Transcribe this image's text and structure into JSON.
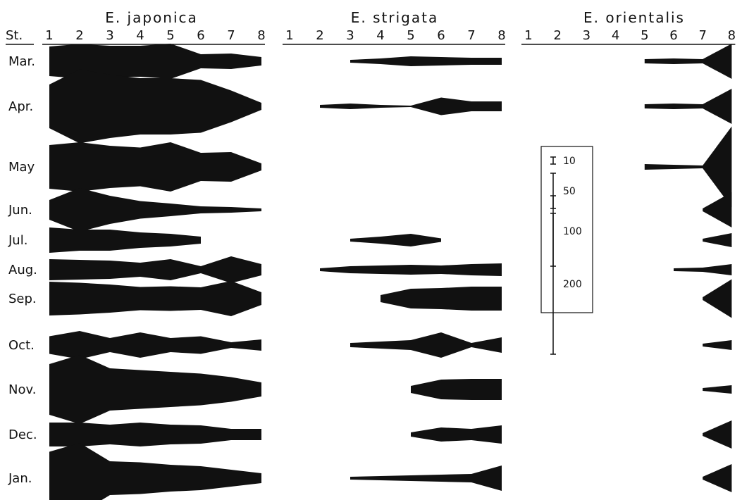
{
  "chart_data": {
    "type": "area",
    "title": "",
    "station_label": "St.",
    "stations": [
      "1",
      "2",
      "3",
      "4",
      "5",
      "6",
      "7",
      "8"
    ],
    "months": [
      "Mar.",
      "Apr.",
      "May",
      "Jun.",
      "Jul.",
      "Aug.",
      "Sep.",
      "Oct.",
      "Nov.",
      "Dec.",
      "Jan."
    ],
    "color": "#111111",
    "value_unit_note": "kite-diagram: band width proportional to abundance",
    "species": [
      {
        "name": "E. japonica",
        "rows": [
          [
            42,
            49,
            44,
            44,
            50,
            20,
            22,
            12
          ],
          [
            62,
            105,
            90,
            80,
            80,
            75,
            45,
            10
          ],
          [
            62,
            70,
            60,
            55,
            70,
            40,
            42,
            10
          ],
          [
            28,
            62,
            40,
            25,
            18,
            10,
            8,
            4
          ],
          [
            36,
            30,
            30,
            22,
            18,
            10,
            null,
            null
          ],
          [
            30,
            28,
            26,
            20,
            30,
            10,
            38,
            16
          ],
          [
            48,
            45,
            40,
            33,
            35,
            32,
            50,
            18
          ],
          [
            25,
            40,
            20,
            36,
            20,
            25,
            8,
            16
          ],
          [
            72,
            98,
            60,
            55,
            50,
            45,
            35,
            20
          ],
          [
            34,
            34,
            28,
            34,
            28,
            26,
            16,
            16
          ],
          [
            75,
            100,
            48,
            45,
            38,
            34,
            24,
            14
          ]
        ]
      },
      {
        "name": "E. strigata",
        "rows": [
          [
            null,
            null,
            4,
            8,
            14,
            12,
            10,
            10
          ],
          [
            null,
            4,
            8,
            4,
            2,
            25,
            14,
            14
          ],
          [
            null,
            null,
            null,
            null,
            null,
            null,
            null,
            null
          ],
          [
            null,
            null,
            null,
            null,
            null,
            null,
            null,
            null
          ],
          [
            null,
            null,
            4,
            10,
            18,
            5,
            null,
            null
          ],
          [
            null,
            4,
            10,
            12,
            14,
            12,
            16,
            18
          ],
          [
            null,
            null,
            null,
            10,
            28,
            30,
            34,
            34
          ],
          [
            null,
            null,
            6,
            10,
            14,
            36,
            6,
            22
          ],
          [
            null,
            null,
            null,
            null,
            10,
            28,
            30,
            30
          ],
          [
            null,
            null,
            null,
            null,
            6,
            20,
            16,
            26
          ],
          [
            null,
            null,
            4,
            6,
            8,
            10,
            12,
            36
          ]
        ]
      },
      {
        "name": "E. orientalis",
        "rows": [
          [
            null,
            null,
            null,
            null,
            6,
            8,
            6,
            50
          ],
          [
            null,
            null,
            null,
            null,
            6,
            8,
            6,
            50
          ],
          [
            null,
            null,
            null,
            null,
            8,
            6,
            4,
            115
          ],
          [
            null,
            null,
            null,
            null,
            null,
            null,
            4,
            50
          ],
          [
            null,
            null,
            null,
            null,
            null,
            null,
            4,
            20
          ],
          [
            null,
            null,
            null,
            null,
            null,
            4,
            6,
            16
          ],
          [
            null,
            null,
            null,
            null,
            null,
            null,
            4,
            55
          ],
          [
            null,
            null,
            null,
            null,
            null,
            null,
            4,
            14
          ],
          [
            null,
            null,
            null,
            null,
            null,
            null,
            4,
            12
          ],
          [
            null,
            null,
            null,
            null,
            null,
            null,
            4,
            40
          ],
          [
            null,
            null,
            null,
            null,
            null,
            null,
            4,
            40
          ]
        ]
      }
    ],
    "scale_bar": [
      {
        "label": "10",
        "value": 10
      },
      {
        "label": "50",
        "value": 50
      },
      {
        "label": "100",
        "value": 100
      },
      {
        "label": "200",
        "value": 200
      }
    ]
  }
}
